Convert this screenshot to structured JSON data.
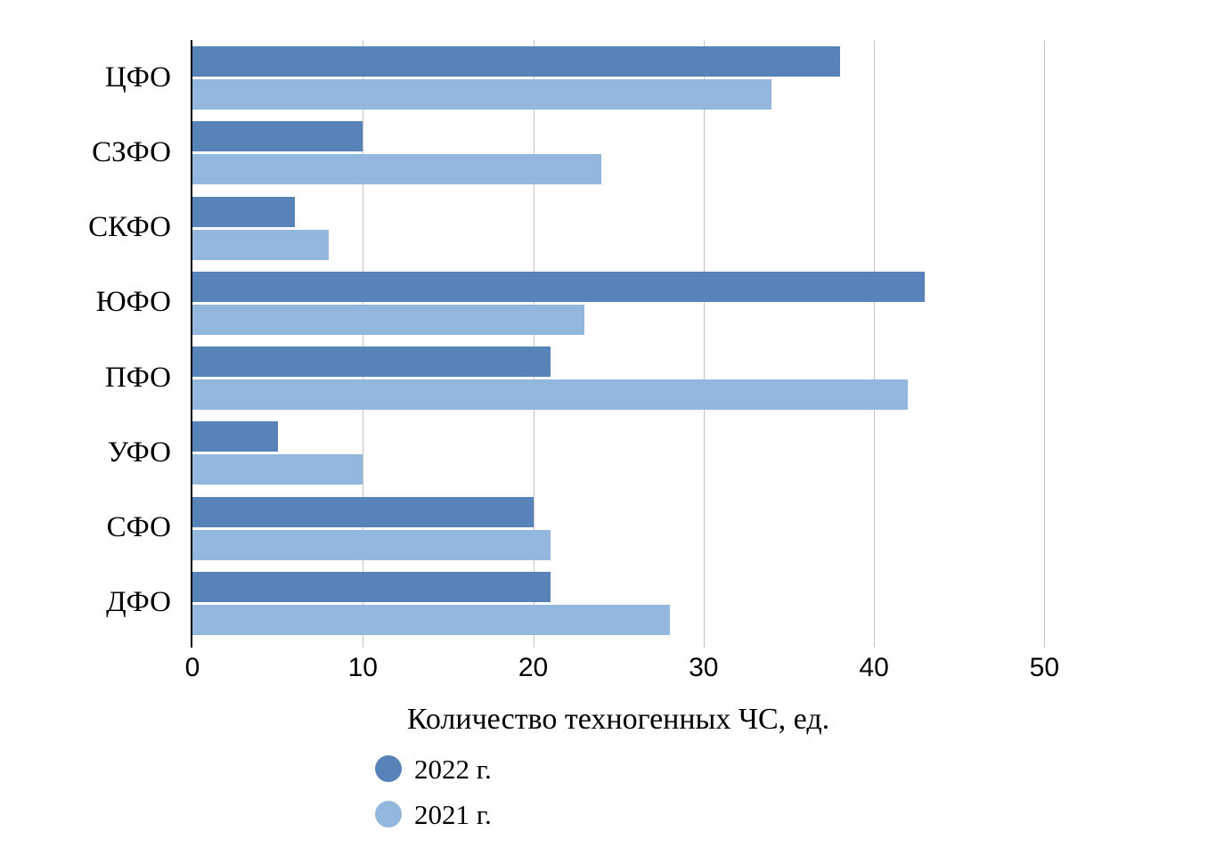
{
  "chart_data": {
    "type": "bar",
    "orientation": "horizontal",
    "title": "Количество техногенных ЧС, ед.",
    "categories": [
      "ЦФО",
      "СЗФО",
      "СКФО",
      "ЮФО",
      "ПФО",
      "УФО",
      "СФО",
      "ДФО"
    ],
    "series": [
      {
        "name": "2022 г.",
        "color": "#5883B8",
        "values": [
          38,
          10,
          6,
          43,
          21,
          5,
          20,
          21
        ]
      },
      {
        "name": "2021 г.",
        "color": "#94B8DD",
        "values": [
          34,
          24,
          8,
          23,
          42,
          10,
          21,
          28
        ]
      }
    ],
    "x_ticks": [
      0,
      10,
      20,
      30,
      40,
      50
    ],
    "xlim": [
      0,
      55
    ],
    "xlabel": "",
    "ylabel": "",
    "grid": "vertical",
    "legend_position": "bottom-left",
    "styles": {
      "grid_color": "#C3C3C3",
      "axis_color": "#000000",
      "text_color": "#000000",
      "background": "#FFFFFF"
    }
  }
}
